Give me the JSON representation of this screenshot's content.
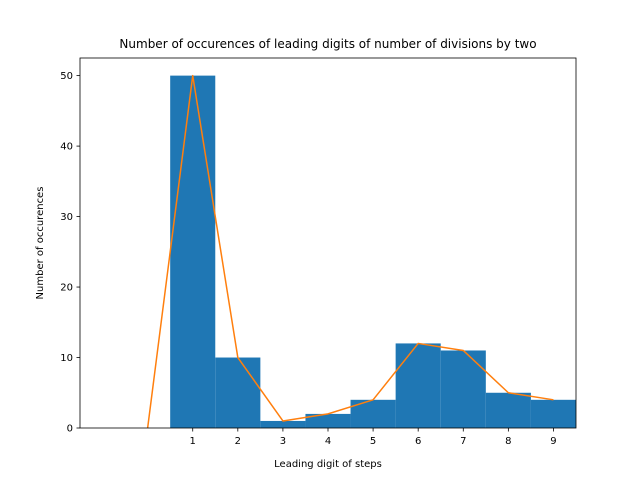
{
  "chart_data": {
    "type": "bar",
    "title": "Number of occurences of leading digits of number of divisions by two",
    "xlabel": "Leading digit of steps",
    "ylabel": "Number of occurences",
    "categories": [
      1,
      2,
      3,
      4,
      5,
      6,
      7,
      8,
      9
    ],
    "bar_values": [
      50,
      10,
      1,
      2,
      4,
      12,
      11,
      5,
      4
    ],
    "line_x": [
      0,
      1,
      2,
      3,
      4,
      5,
      6,
      7,
      8,
      9
    ],
    "line_values": [
      0,
      50,
      10,
      1,
      2,
      4,
      12,
      11,
      5,
      4
    ],
    "xlim": [
      -1.5,
      9.5
    ],
    "ylim": [
      0,
      52.5
    ],
    "xticks": [
      1,
      2,
      3,
      4,
      5,
      6,
      7,
      8,
      9
    ],
    "yticks": [
      0,
      10,
      20,
      30,
      40,
      50
    ],
    "grid": false,
    "bar_color": "#1f77b4",
    "line_color": "#ff7f0e"
  }
}
